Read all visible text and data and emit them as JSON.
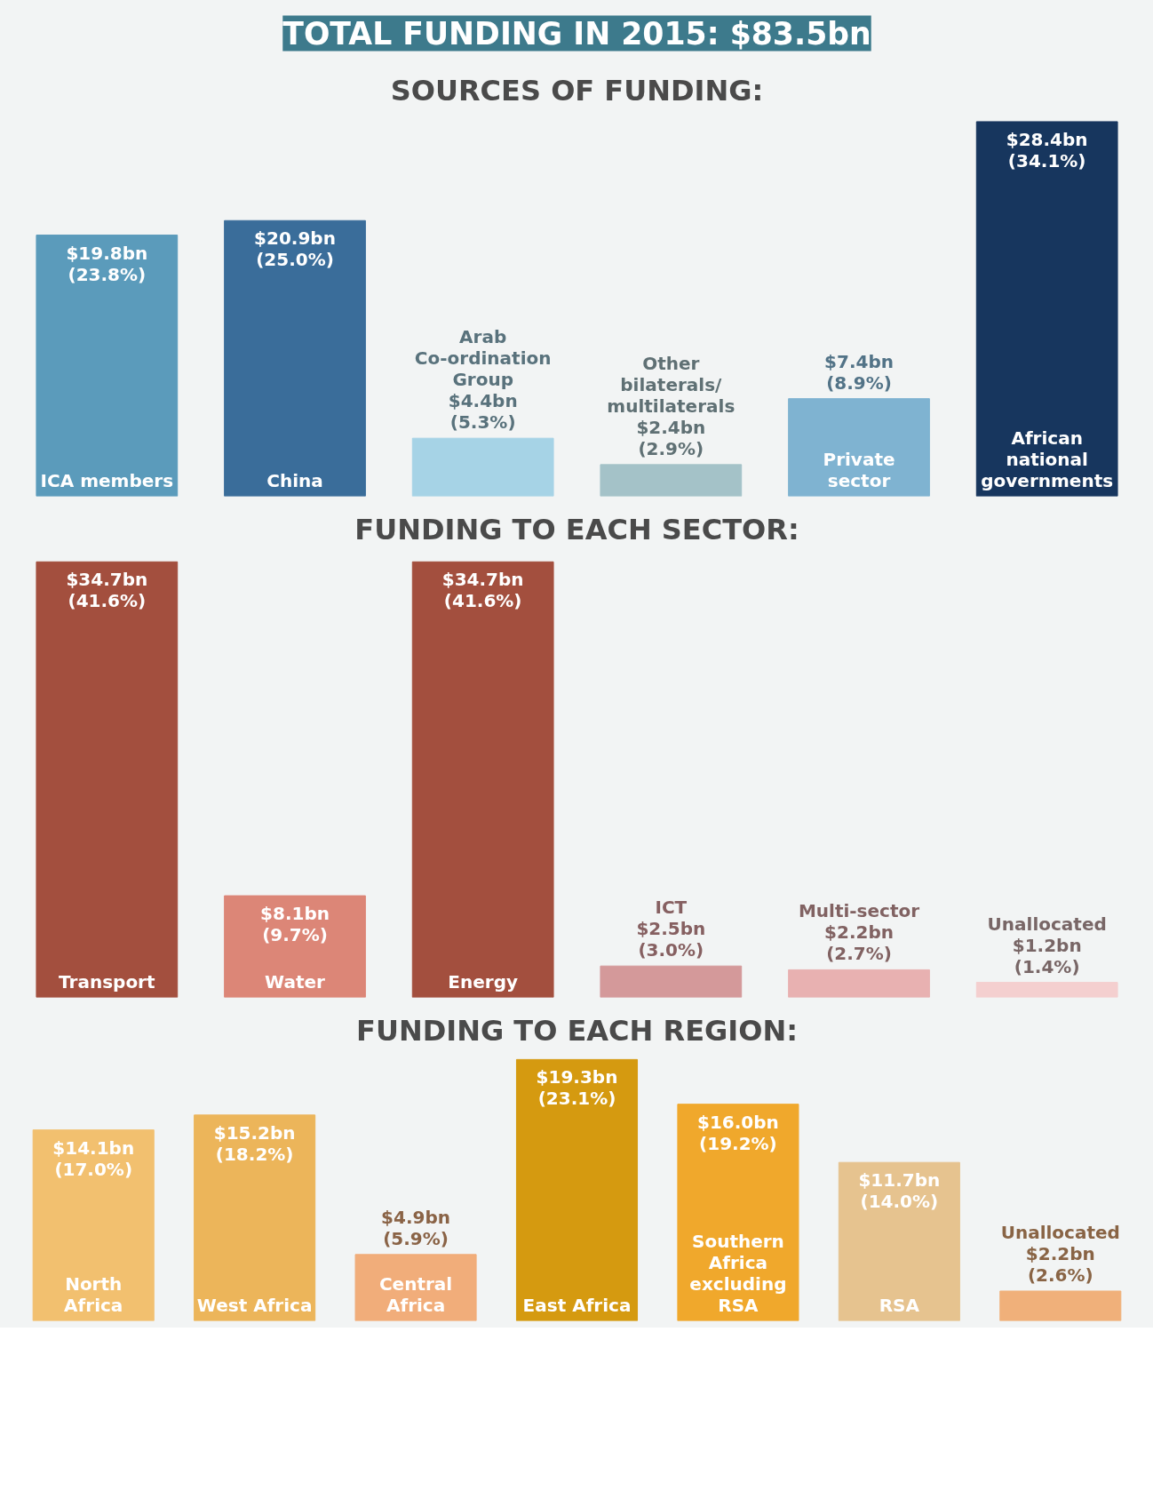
{
  "chart_data": [
    {
      "type": "bar",
      "title": "TOTAL FUNDING IN 2015: $83.5bn",
      "subtitle": "SOURCES OF FUNDING:",
      "categories": [
        "ICA members",
        "China",
        "Arab Co-ordination Group",
        "Other bilaterals/ multilaterals",
        "Private sector",
        "African national governments"
      ],
      "values": [
        19.8,
        20.9,
        4.4,
        2.4,
        7.4,
        28.4
      ],
      "colors": [
        "#5b9bbb",
        "#3a6d9a",
        "#a6d3e6",
        "#a4c2c8",
        "#7fb3d1",
        "#17365e"
      ],
      "value_labels": [
        "$19.8bn",
        "$20.9bn",
        "$4.4bn",
        "$2.4bn",
        "$7.4bn",
        "$28.4bn"
      ],
      "annotations": [
        {
          "text": "(23.8%)",
          "x": "ICA members",
          "y": 19.8
        },
        {
          "text": "(25.0%)",
          "x": "China",
          "y": 20.9
        },
        {
          "text": "(5.3%)",
          "x": "Arab Co-ordination Group",
          "y": 4.4
        },
        {
          "text": "(2.9%)",
          "x": "Other bilaterals/ multilaterals",
          "y": 2.4
        },
        {
          "text": "(8.9%)",
          "x": "Private sector",
          "y": 7.4
        },
        {
          "text": "(34.1%)",
          "x": "African national governments",
          "y": 28.4
        }
      ]
    },
    {
      "type": "bar",
      "title": "FUNDING TO EACH SECTOR:",
      "categories": [
        "Transport",
        "Water",
        "Energy",
        "ICT",
        "Multi-sector",
        "Unallocated"
      ],
      "values": [
        34.7,
        8.1,
        34.7,
        2.5,
        2.2,
        1.2
      ],
      "colors": [
        "#a34f3e",
        "#dc8677",
        "#a34f3e",
        "#d4999a",
        "#e8b1b1",
        "#f4cfcf"
      ],
      "value_labels": [
        "$34.7bn",
        "$8.1bn",
        "$34.7bn",
        "$2.5bn",
        "$2.2bn",
        "$1.2bn"
      ],
      "annotations": [
        {
          "text": "(41.6%)",
          "x": "Transport",
          "y": 34.7
        },
        {
          "text": "(9.7%)",
          "x": "Water",
          "y": 8.1
        },
        {
          "text": "(41.6%)",
          "x": "Energy",
          "y": 34.7
        },
        {
          "text": "(3.0%)",
          "x": "ICT",
          "y": 2.5
        },
        {
          "text": "(2.7%)",
          "x": "Multi-sector",
          "y": 2.2
        },
        {
          "text": "(1.4%)",
          "x": "Unallocated",
          "y": 1.2
        }
      ]
    },
    {
      "type": "bar",
      "title": "FUNDING TO EACH REGION:",
      "categories": [
        "North Africa",
        "West Africa",
        "Central Africa",
        "East Africa",
        "Southern Africa excluding RSA",
        "RSA",
        "Unallocated"
      ],
      "values": [
        14.1,
        15.2,
        4.9,
        19.3,
        16.0,
        11.7,
        2.2
      ],
      "colors": [
        "#f2c06f",
        "#ecb55a",
        "#f1ad7a",
        "#d59a10",
        "#f0a82c",
        "#e6c38f",
        "#f0b07a"
      ],
      "value_labels": [
        "$14.1bn",
        "$15.2bn",
        "$4.9bn",
        "$19.3bn",
        "$16.0bn",
        "$11.7bn",
        "$2.2bn"
      ],
      "annotations": [
        {
          "text": "(17.0%)",
          "x": "North Africa",
          "y": 14.1
        },
        {
          "text": "(18.2%)",
          "x": "West Africa",
          "y": 15.2
        },
        {
          "text": "(5.9%)",
          "x": "Central Africa",
          "y": 4.9
        },
        {
          "text": "(23.1%)",
          "x": "East Africa",
          "y": 19.3
        },
        {
          "text": "(19.2%)",
          "x": "Southern Africa excluding RSA",
          "y": 16.0
        },
        {
          "text": "(14.0%)",
          "x": "RSA",
          "y": 11.7
        },
        {
          "text": "(2.6%)",
          "x": "Unallocated",
          "y": 2.2
        }
      ]
    }
  ]
}
